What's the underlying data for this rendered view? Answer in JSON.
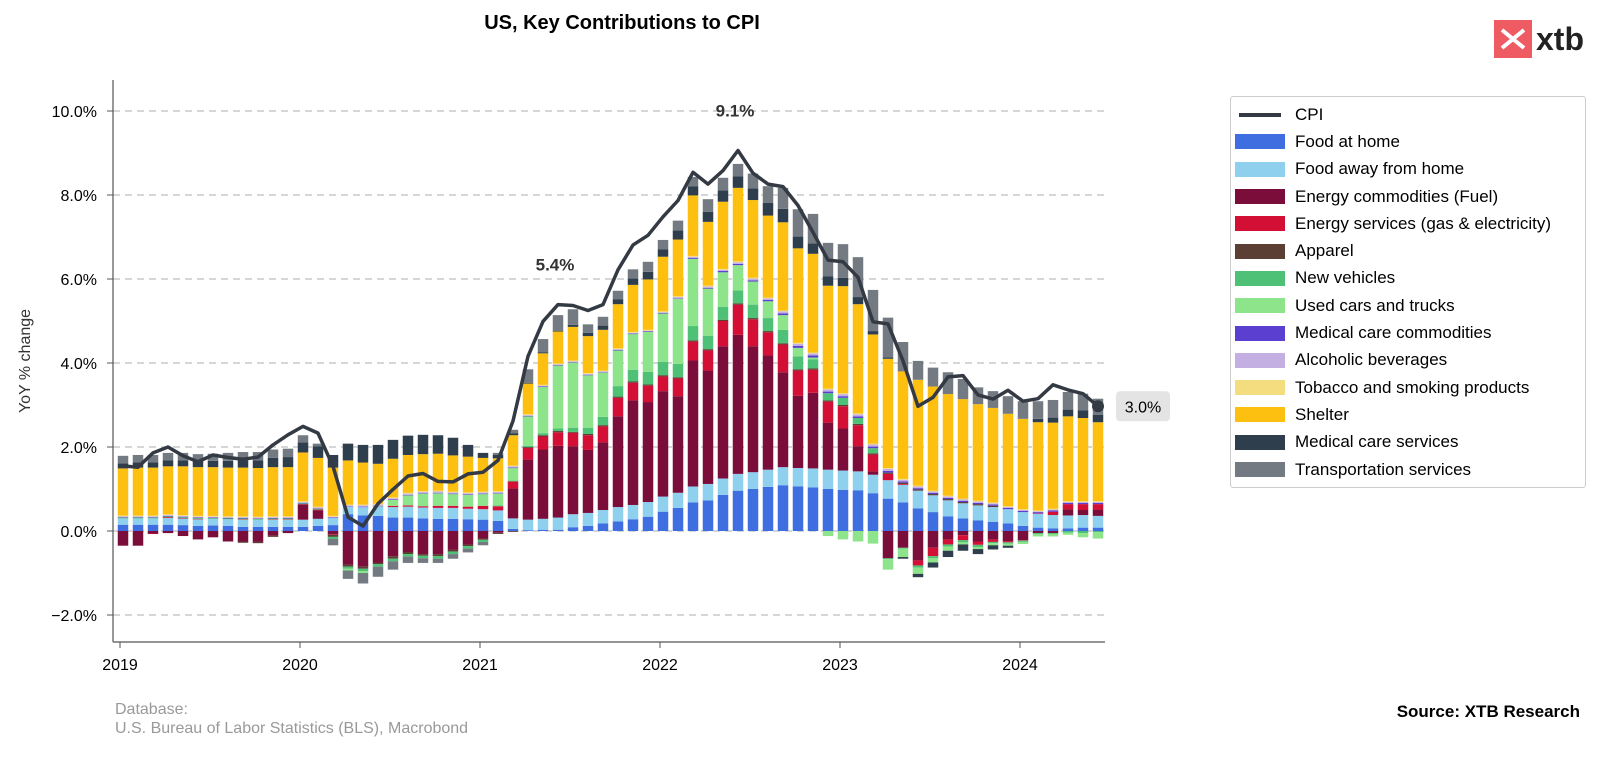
{
  "title": "US, Key Contributions to CPI",
  "logo_text": "xtb",
  "database_label": "Database:",
  "database_value": "U.S. Bureau of Labor Statistics (BLS), Macrobond",
  "source": "Source: XTB Research",
  "chart_data": {
    "type": "bar",
    "stacked": true,
    "title": "US, Key Contributions to CPI",
    "ylabel": "YoY % change",
    "xlabel": "",
    "ylim": [
      -2.6,
      10.7
    ],
    "yticks": [
      -2.0,
      0.0,
      2.0,
      4.0,
      6.0,
      8.0,
      10.0
    ],
    "ytick_labels": [
      "−2.0%",
      "0.0%",
      "2.0%",
      "4.0%",
      "6.0%",
      "8.0%",
      "10.0%"
    ],
    "xtick_labels": [
      "2019",
      "2020",
      "2021",
      "2022",
      "2023",
      "2024"
    ],
    "grid": "horizontal dashed",
    "legend_position": "right",
    "start_month": "2019-01",
    "annotations": [
      {
        "label": "5.4%",
        "month_index": 29
      },
      {
        "label": "9.1%",
        "month_index": 41
      },
      {
        "label": "3.0%",
        "month_index": 65,
        "boxed": true
      }
    ],
    "series": [
      {
        "name": "CPI",
        "type": "line",
        "color": "#343a44",
        "values": [
          1.55,
          1.52,
          1.86,
          2.0,
          1.79,
          1.65,
          1.81,
          1.75,
          1.71,
          1.76,
          2.05,
          2.29,
          2.49,
          2.33,
          1.54,
          0.33,
          0.12,
          0.65,
          0.99,
          1.31,
          1.37,
          1.18,
          1.17,
          1.36,
          1.4,
          1.68,
          2.62,
          4.16,
          4.99,
          5.39,
          5.37,
          5.25,
          5.39,
          6.22,
          6.81,
          7.04,
          7.48,
          7.87,
          8.54,
          8.26,
          8.58,
          9.06,
          8.52,
          8.26,
          8.2,
          7.75,
          7.11,
          6.45,
          6.41,
          6.04,
          4.98,
          4.93,
          4.05,
          2.97,
          3.18,
          3.67,
          3.7,
          3.24,
          3.14,
          3.35,
          3.09,
          3.15,
          3.48,
          3.36,
          3.27,
          2.97
        ]
      },
      {
        "name": "Food at home",
        "color": "#3e6ee0",
        "values": [
          0.15,
          0.15,
          0.15,
          0.15,
          0.14,
          0.12,
          0.13,
          0.12,
          0.1,
          0.1,
          0.1,
          0.1,
          0.1,
          0.12,
          0.14,
          0.4,
          0.37,
          0.36,
          0.32,
          0.32,
          0.3,
          0.29,
          0.29,
          0.28,
          0.27,
          0.24,
          0.05,
          0.02,
          0.03,
          0.03,
          0.09,
          0.12,
          0.18,
          0.23,
          0.28,
          0.34,
          0.46,
          0.55,
          0.68,
          0.73,
          0.86,
          0.96,
          1.0,
          1.05,
          1.09,
          1.06,
          1.04,
          1.0,
          0.98,
          0.97,
          0.9,
          0.77,
          0.68,
          0.54,
          0.45,
          0.35,
          0.3,
          0.25,
          0.22,
          0.18,
          0.12,
          0.08,
          0.06,
          0.06,
          0.08,
          0.08
        ]
      },
      {
        "name": "Food away from home",
        "color": "#8fd0ee",
        "values": [
          0.15,
          0.15,
          0.15,
          0.16,
          0.16,
          0.16,
          0.16,
          0.16,
          0.17,
          0.17,
          0.17,
          0.17,
          0.17,
          0.17,
          0.17,
          0.18,
          0.2,
          0.22,
          0.25,
          0.26,
          0.26,
          0.26,
          0.26,
          0.25,
          0.25,
          0.25,
          0.25,
          0.25,
          0.26,
          0.29,
          0.31,
          0.31,
          0.32,
          0.34,
          0.34,
          0.35,
          0.36,
          0.36,
          0.38,
          0.39,
          0.39,
          0.4,
          0.4,
          0.41,
          0.43,
          0.44,
          0.45,
          0.46,
          0.46,
          0.45,
          0.44,
          0.44,
          0.42,
          0.42,
          0.4,
          0.38,
          0.36,
          0.36,
          0.35,
          0.34,
          0.33,
          0.33,
          0.32,
          0.31,
          0.3,
          0.28
        ]
      },
      {
        "name": "Energy commodities (Fuel)",
        "color": "#7a0d3a",
        "values": [
          -0.35,
          -0.35,
          -0.06,
          -0.05,
          -0.12,
          -0.2,
          -0.15,
          -0.25,
          -0.25,
          -0.26,
          -0.11,
          -0.05,
          0.36,
          0.2,
          -0.08,
          -0.8,
          -0.85,
          -0.75,
          -0.6,
          -0.5,
          -0.55,
          -0.55,
          -0.45,
          -0.32,
          -0.18,
          -0.04,
          0.71,
          1.43,
          1.65,
          1.71,
          1.62,
          1.5,
          1.61,
          2.16,
          2.49,
          2.38,
          2.51,
          2.3,
          3.0,
          2.7,
          3.15,
          3.31,
          3.0,
          2.72,
          2.26,
          1.72,
          1.8,
          1.12,
          1.0,
          0.6,
          0.08,
          -0.65,
          -0.4,
          -0.7,
          -0.4,
          -0.2,
          -0.1,
          -0.25,
          -0.2,
          -0.24,
          -0.22,
          -0.05,
          -0.05,
          0.15,
          0.12,
          0.15
        ]
      },
      {
        "name": "Energy services (gas & electricity)",
        "color": "#d40f36",
        "values": [
          0.0,
          0.0,
          -0.01,
          0.02,
          0.01,
          0.01,
          0.0,
          0.0,
          0.01,
          0.0,
          0.01,
          0.01,
          0.01,
          0.02,
          -0.01,
          0.0,
          0.0,
          0.0,
          0.03,
          0.03,
          0.03,
          0.05,
          0.05,
          0.05,
          0.08,
          0.1,
          0.17,
          0.28,
          0.31,
          0.32,
          0.32,
          0.35,
          0.38,
          0.44,
          0.42,
          0.39,
          0.35,
          0.42,
          0.45,
          0.48,
          0.6,
          0.72,
          0.64,
          0.55,
          0.66,
          0.6,
          0.55,
          0.5,
          0.53,
          0.5,
          0.4,
          0.15,
          0.02,
          -0.12,
          -0.2,
          -0.12,
          -0.12,
          -0.08,
          -0.06,
          -0.03,
          -0.01,
          0.01,
          0.08,
          0.12,
          0.14,
          0.13
        ]
      },
      {
        "name": "Apparel",
        "color": "#5b3e34",
        "values": [
          0.0,
          0.0,
          0.0,
          0.0,
          0.0,
          0.0,
          0.0,
          0.0,
          -0.03,
          -0.03,
          -0.03,
          0.0,
          0.0,
          0.0,
          -0.05,
          -0.05,
          -0.05,
          -0.04,
          -0.06,
          -0.05,
          -0.04,
          -0.05,
          -0.04,
          -0.04,
          -0.03,
          -0.03,
          -0.02,
          0.02,
          0.03,
          0.03,
          0.02,
          0.03,
          0.03,
          0.03,
          0.03,
          0.03,
          0.03,
          0.03,
          0.03,
          0.03,
          0.03,
          0.03,
          0.03,
          0.03,
          0.03,
          0.03,
          0.03,
          0.03,
          0.03,
          0.03,
          0.03,
          0.03,
          0.03,
          0.03,
          0.03,
          0.03,
          0.03,
          0.03,
          0.03,
          0.0,
          0.0,
          0.0,
          0.0,
          0.0,
          0.0,
          0.0
        ]
      },
      {
        "name": "New vehicles",
        "color": "#4fc176",
        "values": [
          0.02,
          0.02,
          0.02,
          0.02,
          0.02,
          0.02,
          0.02,
          0.02,
          0.02,
          0.02,
          0.02,
          0.02,
          0.02,
          0.02,
          -0.05,
          -0.05,
          -0.06,
          -0.06,
          -0.06,
          -0.06,
          -0.06,
          -0.06,
          -0.06,
          -0.06,
          -0.05,
          0.02,
          0.02,
          0.03,
          0.05,
          0.06,
          0.1,
          0.15,
          0.2,
          0.25,
          0.28,
          0.3,
          0.32,
          0.32,
          0.34,
          0.32,
          0.31,
          0.31,
          0.32,
          0.31,
          0.32,
          0.31,
          0.22,
          0.17,
          0.17,
          0.14,
          0.12,
          -0.02,
          -0.02,
          -0.05,
          -0.05,
          -0.05,
          -0.05,
          -0.05,
          -0.03,
          -0.03,
          -0.03,
          -0.03,
          -0.03,
          -0.04,
          -0.05,
          -0.03
        ]
      },
      {
        "name": "Used cars and trucks",
        "color": "#8ee48a",
        "values": [
          0.0,
          0.0,
          0.0,
          0.0,
          0.0,
          0.0,
          0.0,
          0.0,
          0.0,
          0.0,
          0.0,
          0.0,
          0.0,
          0.0,
          0.0,
          -0.04,
          -0.04,
          0.01,
          0.14,
          0.24,
          0.3,
          0.3,
          0.28,
          0.28,
          0.28,
          0.28,
          0.3,
          0.7,
          1.1,
          1.5,
          1.55,
          1.25,
          1.05,
          0.85,
          0.85,
          0.95,
          1.15,
          1.55,
          1.6,
          1.12,
          0.82,
          0.6,
          0.55,
          0.4,
          0.35,
          0.2,
          0.04,
          -0.12,
          -0.2,
          -0.25,
          -0.3,
          -0.25,
          -0.2,
          -0.15,
          -0.1,
          -0.1,
          -0.05,
          -0.05,
          -0.05,
          -0.05,
          -0.05,
          -0.05,
          -0.05,
          -0.05,
          -0.1,
          -0.15
        ]
      },
      {
        "name": "Medical care commodities",
        "color": "#5b3fd0",
        "values": [
          0.01,
          0.01,
          0.01,
          0.01,
          0.01,
          0.01,
          0.01,
          0.01,
          0.01,
          0.01,
          0.01,
          0.01,
          0.01,
          0.01,
          0.01,
          0.01,
          0.01,
          0.01,
          0.01,
          0.01,
          0.01,
          0.01,
          0.01,
          0.01,
          0.01,
          0.01,
          0.01,
          0.01,
          0.01,
          0.01,
          0.01,
          0.01,
          0.01,
          0.01,
          0.01,
          0.01,
          0.01,
          0.01,
          0.02,
          0.02,
          0.03,
          0.03,
          0.03,
          0.03,
          0.04,
          0.05,
          0.05,
          0.04,
          0.04,
          0.04,
          0.04,
          0.04,
          0.03,
          0.03,
          0.03,
          0.03,
          0.03,
          0.03,
          0.03,
          0.03,
          0.03,
          0.03,
          0.03,
          0.03,
          0.03,
          0.03
        ]
      },
      {
        "name": "Alcoholic beverages",
        "color": "#c3afe2",
        "values": [
          0.02,
          0.02,
          0.02,
          0.02,
          0.02,
          0.02,
          0.02,
          0.02,
          0.02,
          0.02,
          0.02,
          0.02,
          0.02,
          0.02,
          0.02,
          0.02,
          0.03,
          0.03,
          0.03,
          0.03,
          0.03,
          0.03,
          0.03,
          0.03,
          0.03,
          0.03,
          0.03,
          0.02,
          0.02,
          0.02,
          0.02,
          0.02,
          0.02,
          0.02,
          0.02,
          0.02,
          0.02,
          0.03,
          0.03,
          0.03,
          0.03,
          0.04,
          0.04,
          0.04,
          0.05,
          0.05,
          0.05,
          0.05,
          0.05,
          0.05,
          0.05,
          0.05,
          0.04,
          0.04,
          0.03,
          0.03,
          0.03,
          0.03,
          0.03,
          0.02,
          0.02,
          0.02,
          0.02,
          0.02,
          0.02,
          0.02
        ]
      },
      {
        "name": "Tobacco and smoking products",
        "color": "#f3dd7f",
        "values": [
          0.02,
          0.02,
          0.02,
          0.02,
          0.02,
          0.02,
          0.02,
          0.02,
          0.02,
          0.02,
          0.02,
          0.02,
          0.02,
          0.02,
          0.02,
          0.02,
          0.02,
          0.02,
          0.02,
          0.02,
          0.02,
          0.02,
          0.02,
          0.02,
          0.02,
          0.02,
          0.02,
          0.02,
          0.02,
          0.02,
          0.02,
          0.02,
          0.02,
          0.02,
          0.02,
          0.02,
          0.02,
          0.02,
          0.02,
          0.02,
          0.02,
          0.02,
          0.02,
          0.02,
          0.02,
          0.02,
          0.02,
          0.02,
          0.02,
          0.02,
          0.02,
          0.02,
          0.02,
          0.02,
          0.02,
          0.02,
          0.02,
          0.02,
          0.02,
          0.02,
          0.02,
          0.02,
          0.02,
          0.02,
          0.02,
          0.02
        ]
      },
      {
        "name": "Shelter",
        "color": "#fdbf10",
        "values": [
          1.12,
          1.14,
          1.14,
          1.14,
          1.16,
          1.16,
          1.16,
          1.16,
          1.16,
          1.16,
          1.17,
          1.17,
          1.16,
          1.16,
          1.15,
          1.05,
          1.0,
          0.95,
          0.92,
          0.9,
          0.88,
          0.88,
          0.86,
          0.85,
          0.8,
          0.78,
          0.72,
          0.73,
          0.75,
          0.76,
          0.8,
          0.88,
          0.97,
          1.05,
          1.12,
          1.2,
          1.3,
          1.35,
          1.44,
          1.52,
          1.6,
          1.75,
          1.85,
          1.95,
          2.1,
          2.25,
          2.35,
          2.45,
          2.55,
          2.6,
          2.6,
          2.6,
          2.56,
          2.52,
          2.48,
          2.42,
          2.37,
          2.3,
          2.25,
          2.2,
          2.15,
          2.1,
          2.05,
          2.02,
          1.98,
          1.88
        ]
      },
      {
        "name": "Medical care services",
        "color": "#2e3e4c",
        "values": [
          0.12,
          0.12,
          0.12,
          0.14,
          0.14,
          0.15,
          0.15,
          0.16,
          0.17,
          0.18,
          0.22,
          0.24,
          0.24,
          0.28,
          0.3,
          0.4,
          0.42,
          0.45,
          0.45,
          0.46,
          0.46,
          0.44,
          0.42,
          0.28,
          0.12,
          0.08,
          0.05,
          0.02,
          0.02,
          0.02,
          0.05,
          0.08,
          0.1,
          0.12,
          0.15,
          0.18,
          0.18,
          0.22,
          0.22,
          0.24,
          0.27,
          0.27,
          0.28,
          0.3,
          0.32,
          0.28,
          0.25,
          0.22,
          0.2,
          0.17,
          0.08,
          0.03,
          -0.04,
          -0.08,
          -0.12,
          -0.15,
          -0.15,
          -0.12,
          -0.1,
          -0.05,
          0.0,
          0.08,
          0.12,
          0.16,
          0.18,
          0.18
        ]
      },
      {
        "name": "Transportation services",
        "color": "#737a82",
        "values": [
          0.18,
          0.18,
          0.18,
          0.18,
          0.18,
          0.16,
          0.17,
          0.19,
          0.2,
          0.2,
          0.2,
          0.2,
          0.17,
          0.06,
          -0.15,
          -0.2,
          -0.25,
          -0.24,
          -0.2,
          -0.15,
          -0.11,
          -0.1,
          -0.11,
          -0.09,
          -0.08,
          0.05,
          0.08,
          0.32,
          0.32,
          0.37,
          0.37,
          0.2,
          0.21,
          0.2,
          0.22,
          0.24,
          0.22,
          0.23,
          0.22,
          0.3,
          0.3,
          0.3,
          0.35,
          0.4,
          0.5,
          0.65,
          0.7,
          0.8,
          0.8,
          0.95,
          0.98,
          0.95,
          0.7,
          0.45,
          0.45,
          0.52,
          0.48,
          0.4,
          0.4,
          0.42,
          0.42,
          0.42,
          0.42,
          0.42,
          0.4,
          0.38
        ]
      }
    ]
  }
}
